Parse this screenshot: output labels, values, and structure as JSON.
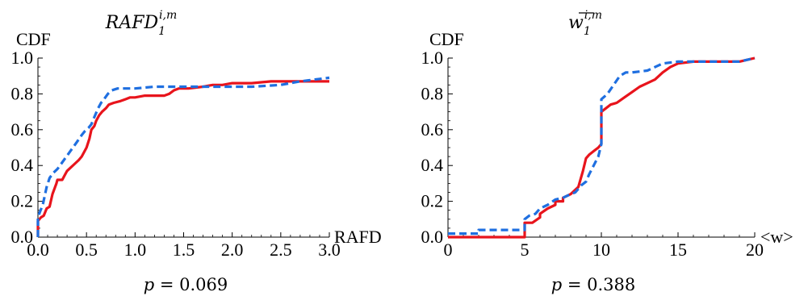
{
  "chart_data": [
    {
      "type": "line",
      "title_main": "RAFD",
      "title_sub": "1",
      "title_sup": "i,m",
      "xlabel": "RAFD",
      "ylabel": "CDF",
      "xlim": [
        0,
        3
      ],
      "ylim": [
        0,
        1
      ],
      "xticks": [
        "0.0",
        "0.5",
        "1.0",
        "1.5",
        "2.0",
        "2.5",
        "3.0"
      ],
      "yticks": [
        "0.0",
        "0.2",
        "0.4",
        "0.6",
        "0.8",
        "1.0"
      ],
      "p_label": "p",
      "p_value": "= 0.069",
      "grid": false,
      "series": [
        {
          "color": "#e8141c",
          "dash": "solid",
          "x": [
            0,
            0.0,
            0.03,
            0.06,
            0.09,
            0.12,
            0.15,
            0.19,
            0.2,
            0.25,
            0.28,
            0.3,
            0.34,
            0.38,
            0.42,
            0.45,
            0.5,
            0.53,
            0.55,
            0.58,
            0.6,
            0.63,
            0.66,
            0.7,
            0.73,
            0.78,
            0.85,
            0.9,
            0.95,
            1.0,
            1.1,
            1.3,
            1.35,
            1.4,
            1.45,
            1.55,
            1.7,
            1.8,
            1.9,
            2.0,
            2.2,
            2.4,
            2.5,
            2.6,
            2.8,
            3.0
          ],
          "y": [
            0,
            0.09,
            0.11,
            0.12,
            0.16,
            0.17,
            0.24,
            0.3,
            0.32,
            0.32,
            0.35,
            0.37,
            0.39,
            0.41,
            0.43,
            0.45,
            0.5,
            0.55,
            0.6,
            0.62,
            0.65,
            0.68,
            0.7,
            0.72,
            0.74,
            0.75,
            0.76,
            0.77,
            0.78,
            0.78,
            0.79,
            0.79,
            0.8,
            0.82,
            0.83,
            0.83,
            0.84,
            0.85,
            0.85,
            0.86,
            0.86,
            0.87,
            0.87,
            0.87,
            0.87,
            0.87
          ]
        },
        {
          "color": "#1f6fe0",
          "dash": "dashed",
          "x": [
            0,
            0.0,
            0.02,
            0.05,
            0.09,
            0.12,
            0.16,
            0.2,
            0.24,
            0.28,
            0.32,
            0.36,
            0.4,
            0.45,
            0.48,
            0.52,
            0.55,
            0.58,
            0.62,
            0.65,
            0.68,
            0.72,
            0.76,
            0.82,
            0.9,
            1.0,
            1.2,
            1.4,
            1.6,
            1.8,
            2.0,
            2.2,
            2.5,
            2.7,
            2.85,
            3.0
          ],
          "y": [
            0,
            0.11,
            0.14,
            0.18,
            0.28,
            0.33,
            0.36,
            0.38,
            0.41,
            0.44,
            0.47,
            0.5,
            0.53,
            0.57,
            0.59,
            0.61,
            0.63,
            0.67,
            0.72,
            0.75,
            0.77,
            0.8,
            0.82,
            0.83,
            0.83,
            0.83,
            0.84,
            0.84,
            0.84,
            0.84,
            0.84,
            0.84,
            0.85,
            0.87,
            0.88,
            0.89
          ]
        }
      ]
    },
    {
      "type": "line",
      "title_main": "w",
      "title_sub": "1",
      "title_sup": "i,m",
      "title_overbar": true,
      "xlabel": "<w>",
      "ylabel": "CDF",
      "xlim": [
        0,
        20
      ],
      "ylim": [
        0,
        1
      ],
      "xticks": [
        "0",
        "5",
        "10",
        "15",
        "20"
      ],
      "yticks": [
        "0.0",
        "0.2",
        "0.4",
        "0.6",
        "0.8",
        "1.0"
      ],
      "p_label": "p",
      "p_value": "= 0.388",
      "grid": false,
      "series": [
        {
          "color": "#e8141c",
          "dash": "solid",
          "x": [
            0,
            5.0,
            5.0,
            5.5,
            6.0,
            6.0,
            6.5,
            7.0,
            7.0,
            7.5,
            7.5,
            8.0,
            8.5,
            8.8,
            9.0,
            9.2,
            9.5,
            9.8,
            10.0,
            10.0,
            10.3,
            10.6,
            11.0,
            11.5,
            12.0,
            12.5,
            13.0,
            13.5,
            14.0,
            14.5,
            15.0,
            16.0,
            17.0,
            18.0,
            19.0,
            19.5,
            20.0
          ],
          "y": [
            0,
            0,
            0.08,
            0.08,
            0.11,
            0.13,
            0.16,
            0.18,
            0.2,
            0.2,
            0.22,
            0.24,
            0.28,
            0.37,
            0.44,
            0.46,
            0.48,
            0.5,
            0.52,
            0.7,
            0.72,
            0.74,
            0.75,
            0.78,
            0.81,
            0.84,
            0.86,
            0.88,
            0.92,
            0.95,
            0.97,
            0.98,
            0.98,
            0.98,
            0.98,
            0.99,
            1.0
          ]
        },
        {
          "color": "#1f6fe0",
          "dash": "dashed",
          "x": [
            0,
            2.0,
            2.0,
            5.0,
            5.0,
            5.3,
            5.7,
            6.0,
            6.5,
            7.0,
            7.5,
            8.0,
            8.3,
            8.7,
            9.0,
            9.2,
            9.5,
            9.8,
            10.0,
            10.0,
            10.4,
            10.8,
            11.2,
            11.6,
            12.0,
            13.0,
            14.0,
            15.0,
            16.0,
            17.0,
            18.0,
            19.0,
            19.5,
            20.0
          ],
          "y": [
            0.02,
            0.02,
            0.04,
            0.04,
            0.1,
            0.12,
            0.13,
            0.16,
            0.18,
            0.21,
            0.22,
            0.24,
            0.25,
            0.29,
            0.31,
            0.35,
            0.4,
            0.45,
            0.52,
            0.77,
            0.8,
            0.85,
            0.9,
            0.92,
            0.92,
            0.93,
            0.97,
            0.98,
            0.98,
            0.98,
            0.98,
            0.98,
            0.99,
            1.0
          ]
        }
      ]
    }
  ]
}
